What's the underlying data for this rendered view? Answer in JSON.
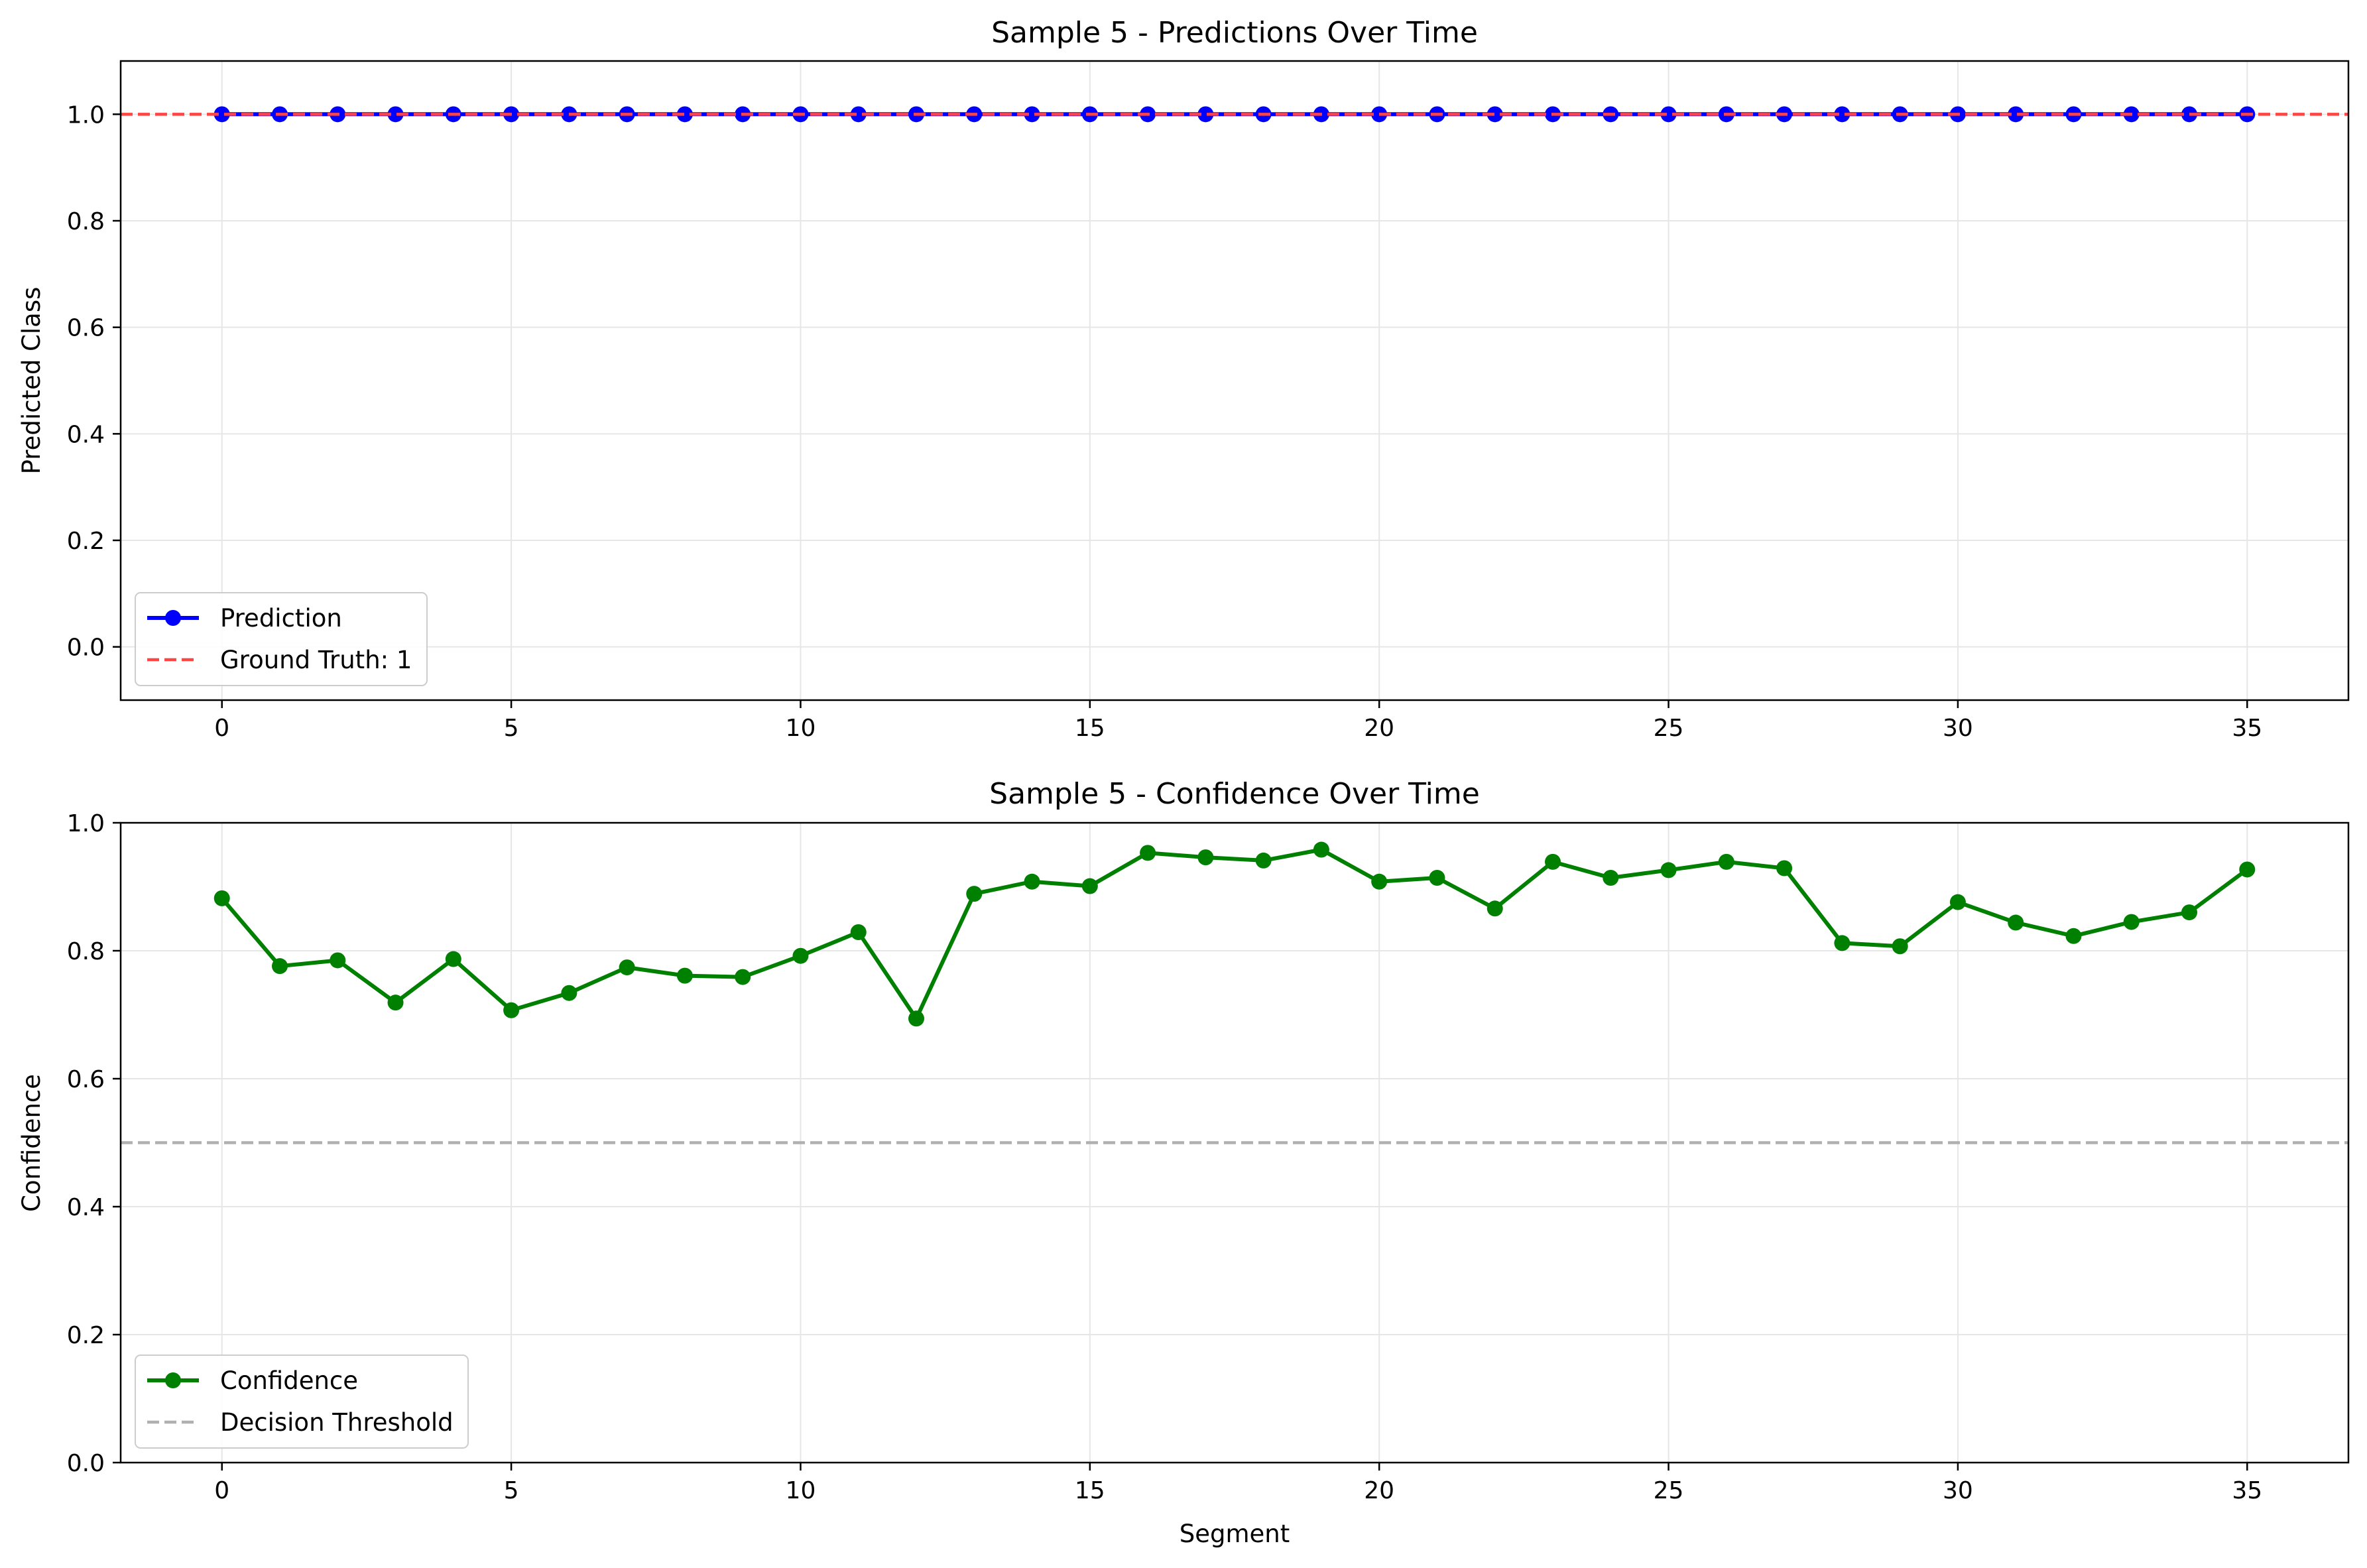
{
  "chart_data": [
    {
      "type": "line",
      "title": "Sample 5 - Predictions Over Time",
      "xlabel": "",
      "ylabel": "Predicted Class",
      "xlim": [
        -1.75,
        36.75
      ],
      "ylim": [
        -0.1,
        1.1
      ],
      "xticks": [
        0,
        5,
        10,
        15,
        20,
        25,
        30,
        35
      ],
      "yticks": [
        0.0,
        0.2,
        0.4,
        0.6,
        0.8,
        1.0
      ],
      "grid": true,
      "legend_position": "lower-left",
      "x": [
        0,
        1,
        2,
        3,
        4,
        5,
        6,
        7,
        8,
        9,
        10,
        11,
        12,
        13,
        14,
        15,
        16,
        17,
        18,
        19,
        20,
        21,
        22,
        23,
        24,
        25,
        26,
        27,
        28,
        29,
        30,
        31,
        32,
        33,
        34,
        35
      ],
      "series": [
        {
          "name": "Prediction",
          "color": "#0000ff",
          "marker": "circle",
          "values": [
            1,
            1,
            1,
            1,
            1,
            1,
            1,
            1,
            1,
            1,
            1,
            1,
            1,
            1,
            1,
            1,
            1,
            1,
            1,
            1,
            1,
            1,
            1,
            1,
            1,
            1,
            1,
            1,
            1,
            1,
            1,
            1,
            1,
            1,
            1,
            1
          ]
        }
      ],
      "hlines": [
        {
          "name": "Ground Truth: 1",
          "y": 1.0,
          "color": "#ff4444",
          "style": "dashed"
        }
      ]
    },
    {
      "type": "line",
      "title": "Sample 5 - Confidence Over Time",
      "xlabel": "Segment",
      "ylabel": "Confidence",
      "xlim": [
        -1.75,
        36.75
      ],
      "ylim": [
        0.0,
        1.0
      ],
      "xticks": [
        0,
        5,
        10,
        15,
        20,
        25,
        30,
        35
      ],
      "yticks": [
        0.0,
        0.2,
        0.4,
        0.6,
        0.8,
        1.0
      ],
      "grid": true,
      "legend_position": "lower-left",
      "x": [
        0,
        1,
        2,
        3,
        4,
        5,
        6,
        7,
        8,
        9,
        10,
        11,
        12,
        13,
        14,
        15,
        16,
        17,
        18,
        19,
        20,
        21,
        22,
        23,
        24,
        25,
        26,
        27,
        28,
        29,
        30,
        31,
        32,
        33,
        34,
        35
      ],
      "series": [
        {
          "name": "Confidence",
          "color": "#008000",
          "marker": "circle",
          "values": [
            0.882,
            0.776,
            0.785,
            0.719,
            0.787,
            0.707,
            0.734,
            0.774,
            0.761,
            0.759,
            0.792,
            0.829,
            0.694,
            0.889,
            0.908,
            0.901,
            0.953,
            0.946,
            0.941,
            0.958,
            0.908,
            0.914,
            0.866,
            0.939,
            0.914,
            0.926,
            0.939,
            0.929,
            0.812,
            0.807,
            0.876,
            0.844,
            0.823,
            0.845,
            0.86,
            0.927
          ]
        }
      ],
      "hlines": [
        {
          "name": "Decision Threshold",
          "y": 0.5,
          "color": "#b0b0b0",
          "style": "dashed"
        }
      ]
    }
  ]
}
